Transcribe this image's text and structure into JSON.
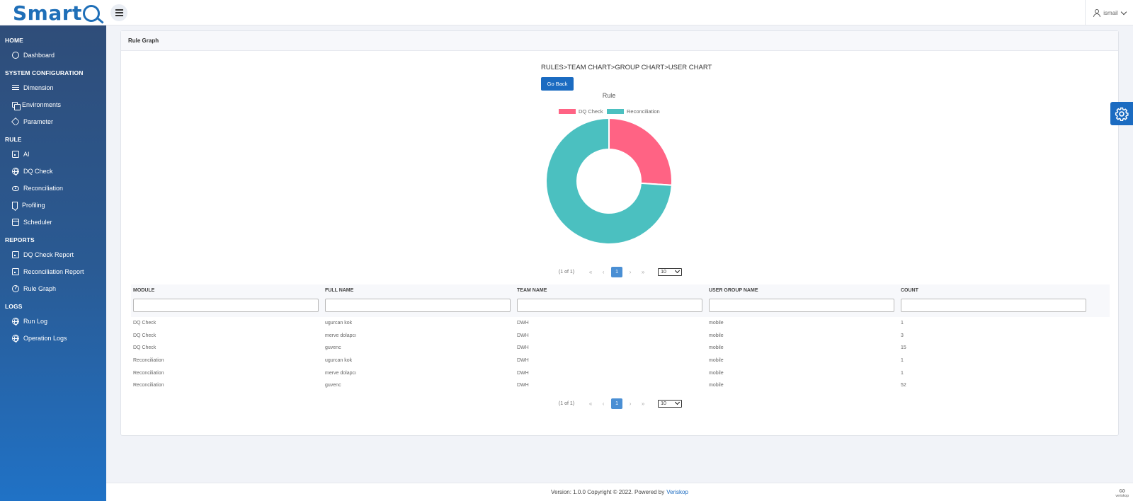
{
  "header": {
    "logo_text": "Smart",
    "user_name": "ismail"
  },
  "sidebar": {
    "sections": [
      {
        "title": "HOME",
        "items": [
          {
            "label": "Dashboard",
            "icon": "circle-icon"
          }
        ]
      },
      {
        "title": "SYSTEM CONFIGURATION",
        "items": [
          {
            "label": "Dimension",
            "icon": "list-icon"
          },
          {
            "label": "Environments",
            "icon": "copy-icon"
          },
          {
            "label": "Parameter",
            "icon": "tag-icon"
          }
        ]
      },
      {
        "title": "RULE",
        "items": [
          {
            "label": "AI",
            "icon": "report-icon"
          },
          {
            "label": "DQ Check",
            "icon": "globe-icon"
          },
          {
            "label": "Reconciliation",
            "icon": "eye-icon"
          },
          {
            "label": "Profiling",
            "icon": "bookmark-icon"
          },
          {
            "label": "Scheduler",
            "icon": "calendar-icon"
          }
        ]
      },
      {
        "title": "REPORTS",
        "items": [
          {
            "label": "DQ Check Report",
            "icon": "report-icon"
          },
          {
            "label": "Reconciliation Report",
            "icon": "report-icon"
          },
          {
            "label": "Rule Graph",
            "icon": "chart-pie-icon"
          }
        ]
      },
      {
        "title": "LOGS",
        "items": [
          {
            "label": "Run Log",
            "icon": "globe-icon"
          },
          {
            "label": "Operation Logs",
            "icon": "globe-icon"
          }
        ]
      }
    ]
  },
  "main": {
    "card_title": "Rule Graph",
    "breadcrumb_path": "RULES>TEAM CHART>GROUP CHART>USER CHART",
    "go_back_label": "Go Back"
  },
  "chart_data": {
    "type": "pie",
    "title": "Rule",
    "donut": true,
    "legend_position": "top",
    "categories": [
      "DQ Check",
      "Reconciliation"
    ],
    "values": [
      19,
      54
    ],
    "colors": [
      "#ff6384",
      "#4bc0c0"
    ]
  },
  "pager": {
    "info": "(1 of 1)",
    "first": "«",
    "prev": "‹",
    "page": "1",
    "next": "›",
    "last": "»",
    "rows_per_page": "10"
  },
  "table": {
    "columns": [
      "MODULE",
      "FULL NAME",
      "TEAM NAME",
      "USER GROUP NAME",
      "COUNT"
    ],
    "rows": [
      [
        "DQ Check",
        "ugurcan kok",
        "DWH",
        "mobile",
        "1"
      ],
      [
        "DQ Check",
        "merve dolapcı",
        "DWH",
        "mobile",
        "3"
      ],
      [
        "DQ Check",
        "guvenc",
        "DWH",
        "mobile",
        "15"
      ],
      [
        "Reconciliation",
        "ugurcan kok",
        "DWH",
        "mobile",
        "1"
      ],
      [
        "Reconciliation",
        "merve dolapcı",
        "DWH",
        "mobile",
        "1"
      ],
      [
        "Reconciliation",
        "guvenc",
        "DWH",
        "mobile",
        "52"
      ]
    ]
  },
  "footer": {
    "text": "Version: 1.0.0 Copyright © 2022. Powered by",
    "link": "Veriskop",
    "brand_mini": "veriskop"
  },
  "colors": {
    "primary": "#1b6bc1",
    "sidebar_top": "#2f4d79",
    "sidebar_bottom": "#2072c6"
  }
}
